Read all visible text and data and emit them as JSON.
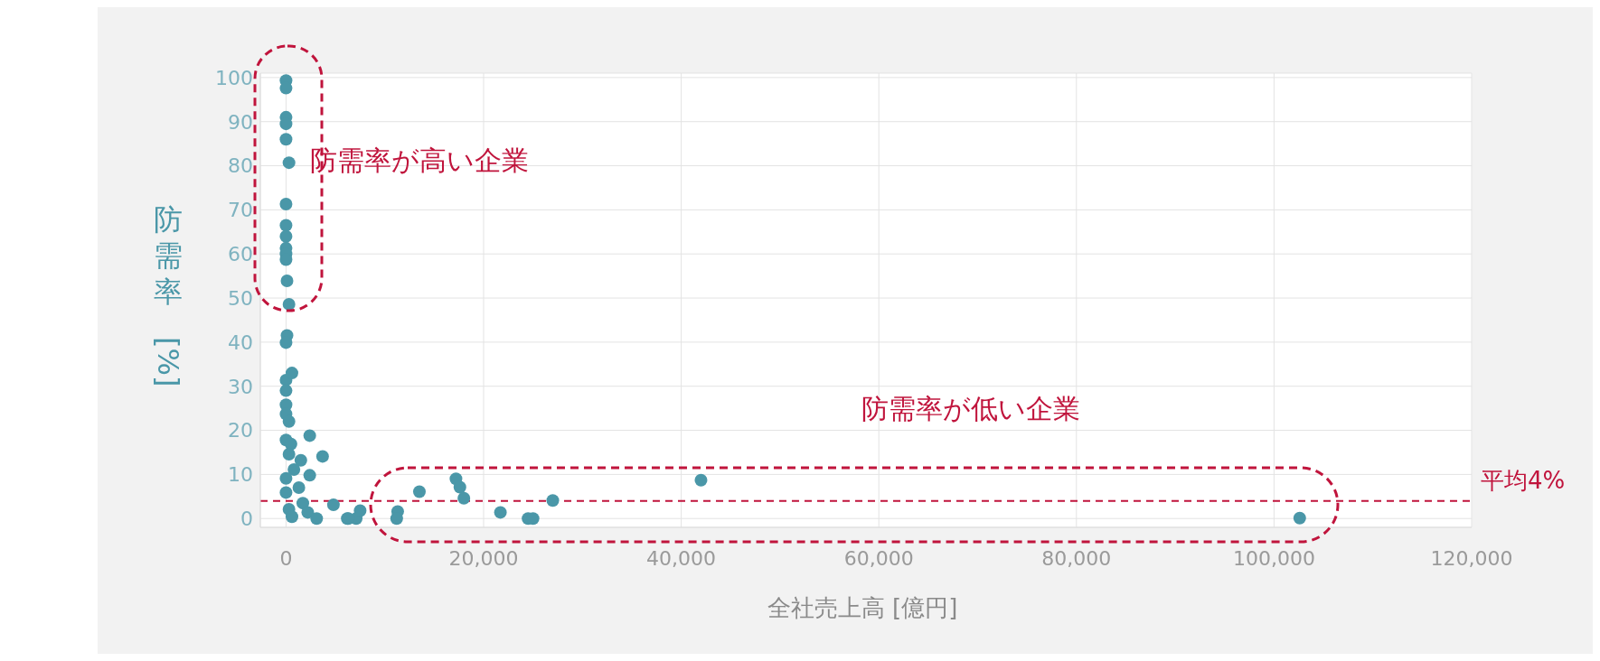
{
  "chart_data": {
    "type": "scatter",
    "xlabel": "全社売上高 [億円]",
    "ylabel": "防需率 [%]",
    "x": [
      0,
      0,
      0,
      0,
      0,
      300,
      0,
      0,
      0,
      0,
      0,
      0,
      100,
      300,
      100,
      0,
      0,
      0,
      0,
      0,
      300,
      600,
      2400,
      0,
      500,
      300,
      3700,
      1500,
      800,
      2400,
      0,
      0,
      1300,
      300,
      600,
      1700,
      2200,
      3100,
      4800,
      6200,
      7100,
      6300,
      7500,
      11300,
      11200,
      13500,
      17200,
      17600,
      18000,
      21700,
      24500,
      25000,
      27000,
      42000,
      102600
    ],
    "values": [
      99.3,
      97.6,
      91,
      89.5,
      86,
      80.7,
      71.3,
      66.5,
      64,
      61.3,
      60,
      58.7,
      53.9,
      48.6,
      41.5,
      39.9,
      31.4,
      29,
      25.8,
      23.7,
      22,
      33,
      18.8,
      17.8,
      16.9,
      14.6,
      14.1,
      13.2,
      11.1,
      9.8,
      9.1,
      5.9,
      7,
      2.1,
      0.4,
      3.5,
      1.4,
      0,
      3.1,
      0,
      0,
      0,
      1.8,
      1.6,
      0,
      6.1,
      9,
      7.1,
      4.6,
      1.4,
      0,
      0,
      4.1,
      8.7,
      0.1
    ],
    "color": "#4a97a8",
    "marker": "circle",
    "xlim": [
      -2600,
      120000
    ],
    "xticks": [
      {
        "value": 0,
        "label": "0"
      },
      {
        "value": 20000,
        "label": "20,000"
      },
      {
        "value": 40000,
        "label": "40,000"
      },
      {
        "value": 60000,
        "label": "60,000"
      },
      {
        "value": 80000,
        "label": "80,000"
      },
      {
        "value": 100000,
        "label": "100,000"
      },
      {
        "value": 120000,
        "label": "120,000"
      }
    ],
    "ylim": [
      -2,
      101
    ],
    "yticks": [
      0,
      10,
      20,
      30,
      40,
      50,
      60,
      70,
      80,
      90,
      100
    ],
    "grid": true,
    "ref_lines": [
      {
        "axis": "y",
        "value": 4,
        "label": "平均4%",
        "color": "#c0143c",
        "line_style": "dashed"
      }
    ],
    "annotations": [
      "防需率が高い企業",
      "防需率が低い企業"
    ]
  }
}
